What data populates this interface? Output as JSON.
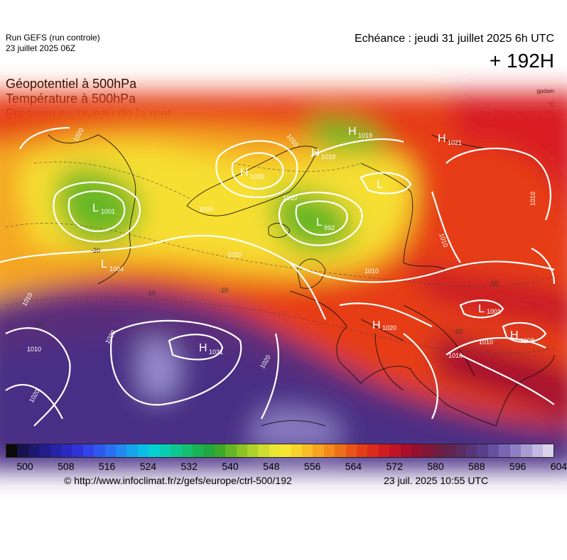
{
  "header": {
    "run_title": "Run GEFS (run controle)",
    "run_date": "23 juillet 2025 06Z",
    "echeance": "Echéance : jeudi 31 juillet 2025 6h UTC",
    "forecast_hour": "+ 192H"
  },
  "variables": [
    "Géopotentiel à 500hPa",
    "Température à 500hPa",
    "Pression au niveau de la mer"
  ],
  "units": {
    "geopotential": "gpdam",
    "temperature": "°C",
    "pressure": "[Max 1032.6 | Min 991.5] hPa"
  },
  "pressure_centers": [
    {
      "type": "L",
      "value": "1001",
      "color": "#ffffff"
    },
    {
      "type": "L",
      "value": "1004",
      "color": "#ffffff"
    },
    {
      "type": "L",
      "value": "992",
      "color": "#ffffff"
    },
    {
      "type": "L",
      "value": "",
      "color": "#ffffff"
    },
    {
      "type": "H",
      "value": "1033",
      "color": "#ffffff"
    },
    {
      "type": "H",
      "value": "1019",
      "color": "#ffffff"
    },
    {
      "type": "H",
      "value": "1019",
      "color": "#ffffff"
    },
    {
      "type": "H",
      "value": "1021",
      "color": "#ffffff"
    },
    {
      "type": "L",
      "value": "1001",
      "color": "#ffffff"
    },
    {
      "type": "H",
      "value": "1020",
      "color": "#ffffff"
    },
    {
      "type": "H",
      "value": "1008",
      "color": "#ffffff"
    },
    {
      "type": "H",
      "value": "1031",
      "color": "#ffffff"
    }
  ],
  "isobar_labels": [
    "1020",
    "1010",
    "1020",
    "1020",
    "1020",
    "1010",
    "1010",
    "1010",
    "1010",
    "1020",
    "1020",
    "1010",
    "1010",
    "1010",
    "1010"
  ],
  "temp_labels": [
    "-10",
    "-20",
    "-10",
    "-10",
    "-10",
    "-10"
  ],
  "colorbar": {
    "colors": [
      "#0b0b0b",
      "#16134f",
      "#1c1870",
      "#221c8c",
      "#2722a6",
      "#2b29bf",
      "#2f33d6",
      "#3142e6",
      "#2f58ef",
      "#2a70f2",
      "#2189f0",
      "#15a4ec",
      "#0bbde6",
      "#06d0d2",
      "#09cdb0",
      "#0fc790",
      "#15bf72",
      "#1ab458",
      "#22a83f",
      "#3ca82a",
      "#64b526",
      "#8bc426",
      "#afd12b",
      "#cedd30",
      "#e9e633",
      "#f6e631",
      "#f9d42c",
      "#f8bd26",
      "#f6a421",
      "#f38a1d",
      "#ef701a",
      "#ea5518",
      "#e43d18",
      "#dc2a1c",
      "#cf1c22",
      "#c01328",
      "#ab0e2c",
      "#951031",
      "#811637",
      "#6f1d40",
      "#62244f",
      "#5a2c62",
      "#573578",
      "#5a3f8e",
      "#6650a2",
      "#7866b4",
      "#8e80c4",
      "#a89cd3",
      "#c2b8e1",
      "#dbd2ec"
    ],
    "ticks": [
      "500",
      "508",
      "516",
      "524",
      "532",
      "540",
      "548",
      "556",
      "564",
      "572",
      "580",
      "588",
      "596",
      "604"
    ]
  },
  "footer": {
    "source": "© http://www.infoclimat.fr/z/gefs/europe/ctrl-500/192",
    "generated": "23 juil. 2025 10:55 UTC"
  }
}
